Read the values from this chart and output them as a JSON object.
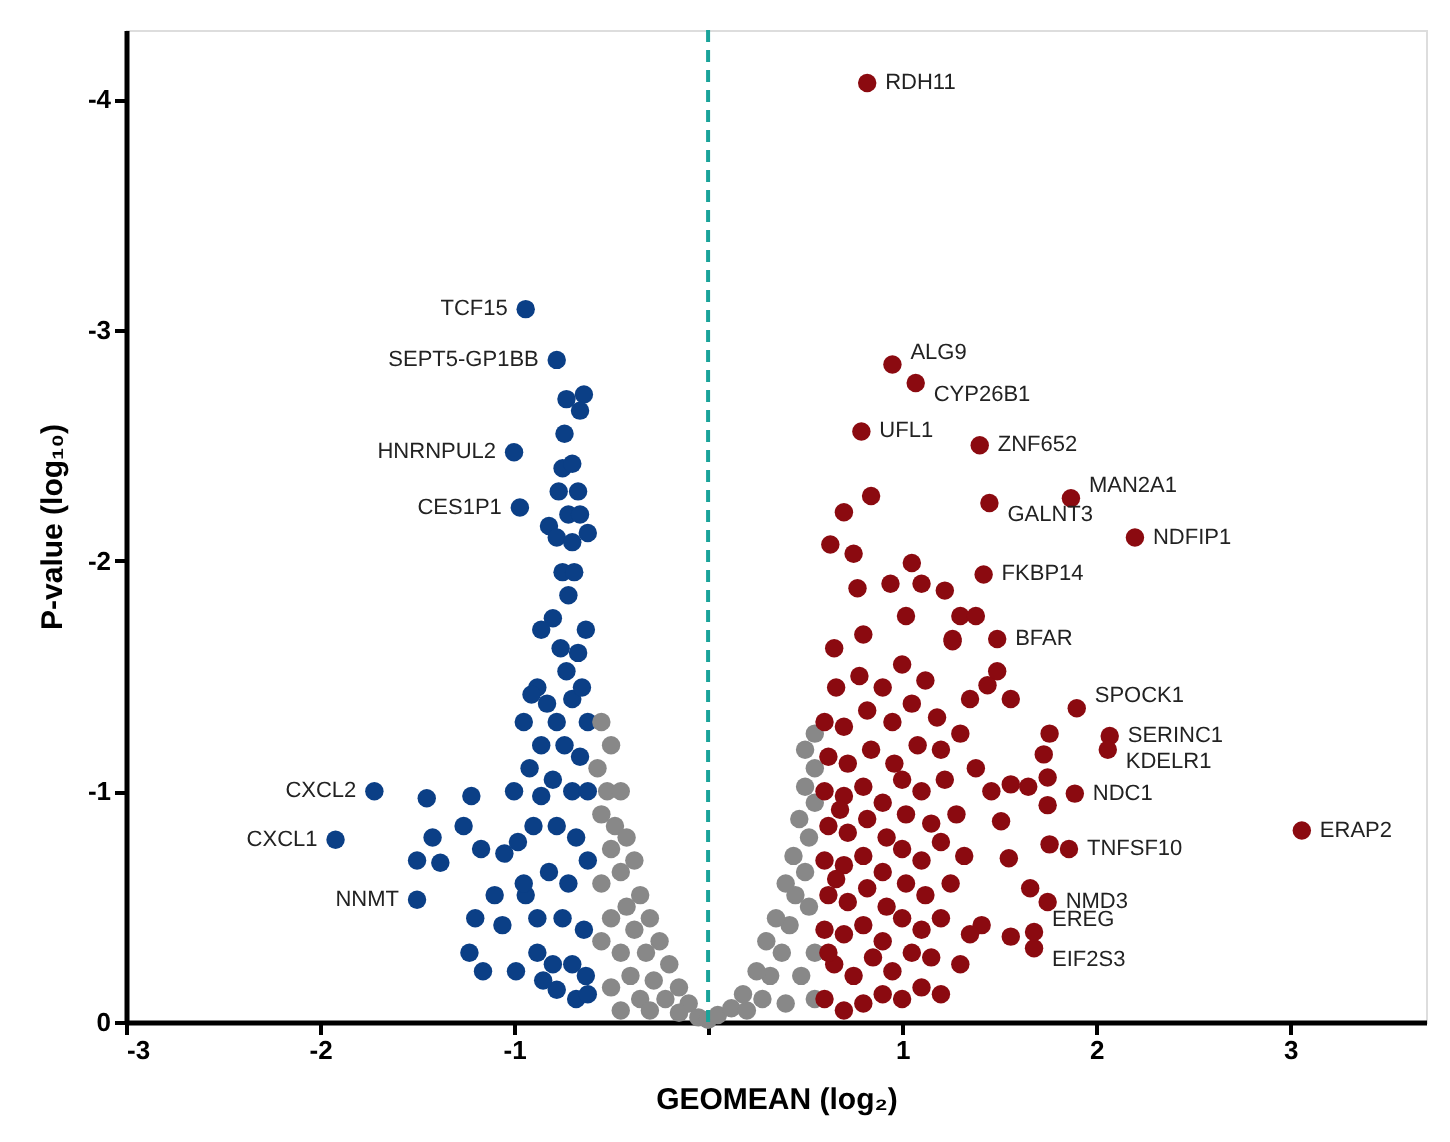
{
  "chart_data": {
    "type": "scatter",
    "xlabel": "GEOMEAN (log₂)",
    "ylabel": "P-value (log₁₀)",
    "xlim": [
      -3,
      3.7
    ],
    "ylim": [
      0,
      -4.3
    ],
    "xticks": [
      -3,
      -2,
      -1,
      {
        "value": 0,
        "label": null
      },
      1,
      2,
      3
    ],
    "yticks": [
      0,
      -1,
      -2,
      -3,
      -4
    ],
    "grid": false,
    "marker": "circle",
    "ref_lines": [
      {
        "axis": "x",
        "value": 0,
        "label": null,
        "color": "#1aa39a",
        "line_style": "dashed"
      }
    ],
    "series": [
      {
        "color": "#0b3f86",
        "x": [
          -0.94,
          -0.78,
          -1.0,
          -0.97,
          -1.72,
          -1.92,
          -1.5,
          -0.64,
          -0.66,
          -0.73,
          -0.74,
          -0.75,
          -0.7,
          -0.77,
          -0.67,
          -0.72,
          -0.66,
          -0.82,
          -0.78,
          -0.7,
          -0.62,
          -0.75,
          -0.69,
          -0.72,
          -0.8,
          -0.86,
          -0.76,
          -0.67,
          -0.63,
          -0.73,
          -0.88,
          -0.91,
          -0.83,
          -0.95,
          -0.7,
          -0.65,
          -0.62,
          -0.78,
          -0.86,
          -0.74,
          -0.66,
          -0.92,
          -0.8,
          -0.7,
          -0.62,
          -0.86,
          -1.0,
          -1.22,
          -1.45,
          -1.42,
          -1.26,
          -1.17,
          -1.05,
          -0.98,
          -0.9,
          -0.78,
          -0.68,
          -0.62,
          -1.5,
          -1.38,
          -0.82,
          -0.72,
          -0.94,
          -1.2,
          -1.06,
          -0.88,
          -0.75,
          -0.64,
          -1.23,
          -1.16,
          -0.99,
          -0.88,
          -0.8,
          -0.7,
          -0.63,
          -0.78,
          -0.68,
          -0.62,
          -0.85,
          -0.95,
          -1.1
        ],
        "values": [
          -3.09,
          -2.87,
          -2.47,
          -2.23,
          -1.0,
          -0.79,
          -0.53,
          -2.72,
          -2.65,
          -2.7,
          -2.55,
          -2.4,
          -2.42,
          -2.3,
          -2.3,
          -2.2,
          -2.2,
          -2.15,
          -2.1,
          -2.08,
          -2.12,
          -1.95,
          -1.95,
          -1.85,
          -1.75,
          -1.7,
          -1.62,
          -1.6,
          -1.7,
          -1.52,
          -1.45,
          -1.42,
          -1.38,
          -1.3,
          -1.4,
          -1.45,
          -1.3,
          -1.3,
          -1.2,
          -1.2,
          -1.15,
          -1.1,
          -1.05,
          -1.0,
          -1.0,
          -0.98,
          -1.0,
          -0.98,
          -0.97,
          -0.8,
          -0.85,
          -0.75,
          -0.73,
          -0.78,
          -0.85,
          -0.85,
          -0.8,
          -0.7,
          -0.7,
          -0.69,
          -0.65,
          -0.6,
          -0.55,
          -0.45,
          -0.42,
          -0.45,
          -0.45,
          -0.4,
          -0.3,
          -0.22,
          -0.22,
          -0.3,
          -0.25,
          -0.25,
          -0.2,
          -0.14,
          -0.1,
          -0.12,
          -0.18,
          -0.6,
          -0.55
        ]
      },
      {
        "color": "#888888",
        "x": [
          -0.55,
          -0.5,
          -0.57,
          -0.52,
          -0.45,
          -0.55,
          -0.48,
          -0.42,
          -0.5,
          -0.38,
          -0.45,
          -0.55,
          -0.35,
          -0.42,
          -0.5,
          -0.3,
          -0.38,
          -0.55,
          -0.45,
          -0.25,
          -0.32,
          -0.2,
          -0.4,
          -0.5,
          -0.28,
          -0.15,
          -0.35,
          -0.22,
          -0.1,
          -0.45,
          -0.3,
          -0.15,
          -0.05,
          0.0,
          0.05,
          0.12,
          0.2,
          0.28,
          0.18,
          0.32,
          0.25,
          0.38,
          0.3,
          0.42,
          0.35,
          0.45,
          0.4,
          0.5,
          0.44,
          0.52,
          0.47,
          0.55,
          0.5,
          0.55,
          0.5,
          0.55,
          0.52,
          0.55,
          0.48,
          0.55,
          0.4
        ],
        "values": [
          -1.3,
          -1.2,
          -1.1,
          -1.0,
          -1.0,
          -0.9,
          -0.85,
          -0.8,
          -0.75,
          -0.7,
          -0.65,
          -0.6,
          -0.55,
          -0.5,
          -0.45,
          -0.45,
          -0.4,
          -0.35,
          -0.3,
          -0.35,
          -0.3,
          -0.25,
          -0.2,
          -0.15,
          -0.18,
          -0.15,
          -0.1,
          -0.1,
          -0.08,
          -0.05,
          -0.05,
          -0.04,
          -0.02,
          -0.01,
          -0.03,
          -0.06,
          -0.05,
          -0.1,
          -0.12,
          -0.2,
          -0.22,
          -0.3,
          -0.35,
          -0.42,
          -0.45,
          -0.55,
          -0.6,
          -0.65,
          -0.72,
          -0.8,
          -0.88,
          -0.95,
          -1.02,
          -1.1,
          -1.18,
          -1.25,
          -0.5,
          -0.3,
          -0.2,
          -0.1,
          -0.08
        ]
      },
      {
        "color": "#8b0a10",
        "x": [
          0.82,
          0.95,
          1.07,
          0.79,
          1.4,
          1.45,
          1.87,
          2.2,
          1.42,
          1.49,
          1.9,
          2.07,
          2.06,
          1.89,
          1.86,
          1.75,
          1.68,
          1.68,
          3.06,
          0.84,
          0.7,
          0.63,
          0.75,
          1.05,
          0.77,
          0.94,
          1.1,
          1.22,
          1.02,
          1.3,
          1.38,
          0.8,
          1.26,
          0.65,
          1.76,
          1.73,
          1.75,
          1.65,
          1.56,
          1.46,
          1.75,
          1.51,
          1.76,
          1.55,
          1.66,
          1.56,
          1.41,
          1.56,
          1.49,
          1.44,
          1.26,
          0.6,
          0.7,
          0.8,
          0.9,
          1.0,
          1.1,
          1.2,
          0.65,
          0.75,
          0.85,
          0.95,
          1.05,
          1.15,
          1.3,
          0.6,
          0.7,
          0.8,
          0.9,
          1.0,
          1.1,
          1.2,
          1.35,
          0.62,
          0.72,
          0.82,
          0.92,
          1.02,
          1.12,
          1.25,
          0.6,
          0.7,
          0.8,
          0.9,
          1.0,
          1.1,
          1.2,
          1.32,
          0.62,
          0.72,
          0.82,
          0.92,
          1.02,
          1.15,
          1.28,
          0.6,
          0.7,
          0.8,
          0.9,
          1.0,
          1.1,
          1.22,
          1.38,
          0.62,
          0.72,
          0.84,
          0.96,
          1.08,
          1.2,
          1.3,
          0.6,
          0.7,
          0.82,
          0.95,
          1.05,
          1.18,
          1.35,
          0.66,
          0.78,
          0.9,
          1.0,
          1.12,
          0.62,
          0.66,
          0.68
        ],
        "values": [
          -4.07,
          -2.85,
          -2.77,
          -2.56,
          -2.5,
          -2.25,
          -2.27,
          -2.1,
          -1.94,
          -1.66,
          -1.36,
          -1.24,
          -1.18,
          -0.99,
          -0.75,
          -0.52,
          -0.39,
          -0.32,
          -0.83,
          -2.28,
          -2.21,
          -2.07,
          -2.03,
          -1.99,
          -1.88,
          -1.9,
          -1.9,
          -1.87,
          -1.76,
          -1.76,
          -1.76,
          -1.68,
          -1.66,
          -1.62,
          -1.25,
          -1.16,
          -1.06,
          -1.02,
          -1.03,
          -1.0,
          -0.94,
          -0.87,
          -0.77,
          -0.71,
          -0.58,
          -0.37,
          -0.42,
          -1.4,
          -1.52,
          -1.46,
          -1.65,
          -0.1,
          -0.05,
          -0.08,
          -0.12,
          -0.1,
          -0.15,
          -0.12,
          -0.25,
          -0.2,
          -0.28,
          -0.22,
          -0.3,
          -0.28,
          -0.25,
          -0.4,
          -0.38,
          -0.42,
          -0.35,
          -0.45,
          -0.4,
          -0.45,
          -0.38,
          -0.55,
          -0.52,
          -0.58,
          -0.5,
          -0.6,
          -0.55,
          -0.6,
          -0.7,
          -0.68,
          -0.72,
          -0.65,
          -0.75,
          -0.7,
          -0.78,
          -0.72,
          -0.85,
          -0.82,
          -0.88,
          -0.8,
          -0.9,
          -0.86,
          -0.9,
          -1.0,
          -0.98,
          -1.02,
          -0.95,
          -1.05,
          -1.0,
          -1.05,
          -1.1,
          -1.15,
          -1.12,
          -1.18,
          -1.12,
          -1.2,
          -1.18,
          -1.25,
          -1.3,
          -1.28,
          -1.35,
          -1.3,
          -1.38,
          -1.32,
          -1.4,
          -1.45,
          -1.5,
          -1.45,
          -1.55,
          -1.48,
          -0.3,
          -0.62,
          -0.92
        ]
      }
    ],
    "annotations": [
      {
        "text": "TCF15",
        "x": -0.94,
        "y": -3.09
      },
      {
        "text": "SEPT5-GP1BB",
        "x": -0.78,
        "y": -2.87
      },
      {
        "text": "HNRNPUL2",
        "x": -1.0,
        "y": -2.47
      },
      {
        "text": "CES1P1",
        "x": -0.97,
        "y": -2.23
      },
      {
        "text": "CXCL2",
        "x": -1.72,
        "y": -1.0
      },
      {
        "text": "CXCL1",
        "x": -1.92,
        "y": -0.79
      },
      {
        "text": "NNMT",
        "x": -1.5,
        "y": -0.53
      },
      {
        "text": "RDH11",
        "x": 0.82,
        "y": -4.07
      },
      {
        "text": "ALG9",
        "x": 0.95,
        "y": -2.85
      },
      {
        "text": "CYP26B1",
        "x": 1.07,
        "y": -2.77
      },
      {
        "text": "UFL1",
        "x": 0.79,
        "y": -2.56
      },
      {
        "text": "ZNF652",
        "x": 1.4,
        "y": -2.5
      },
      {
        "text": "GALNT3",
        "x": 1.45,
        "y": -2.25
      },
      {
        "text": "MAN2A1",
        "x": 1.87,
        "y": -2.27
      },
      {
        "text": "NDFIP1",
        "x": 2.2,
        "y": -2.1
      },
      {
        "text": "FKBP14",
        "x": 1.42,
        "y": -1.94
      },
      {
        "text": "BFAR",
        "x": 1.49,
        "y": -1.66
      },
      {
        "text": "SPOCK1",
        "x": 1.9,
        "y": -1.36
      },
      {
        "text": "SERINC1",
        "x": 2.07,
        "y": -1.24
      },
      {
        "text": "KDELR1",
        "x": 2.06,
        "y": -1.18
      },
      {
        "text": "NDC1",
        "x": 1.89,
        "y": -0.99
      },
      {
        "text": "TNFSF10",
        "x": 1.86,
        "y": -0.75
      },
      {
        "text": "NMD3",
        "x": 1.75,
        "y": -0.52
      },
      {
        "text": "EREG",
        "x": 1.68,
        "y": -0.39
      },
      {
        "text": "EIF2S3",
        "x": 1.68,
        "y": -0.32
      },
      {
        "text": "ERAP2",
        "x": 3.06,
        "y": -0.83
      }
    ]
  }
}
